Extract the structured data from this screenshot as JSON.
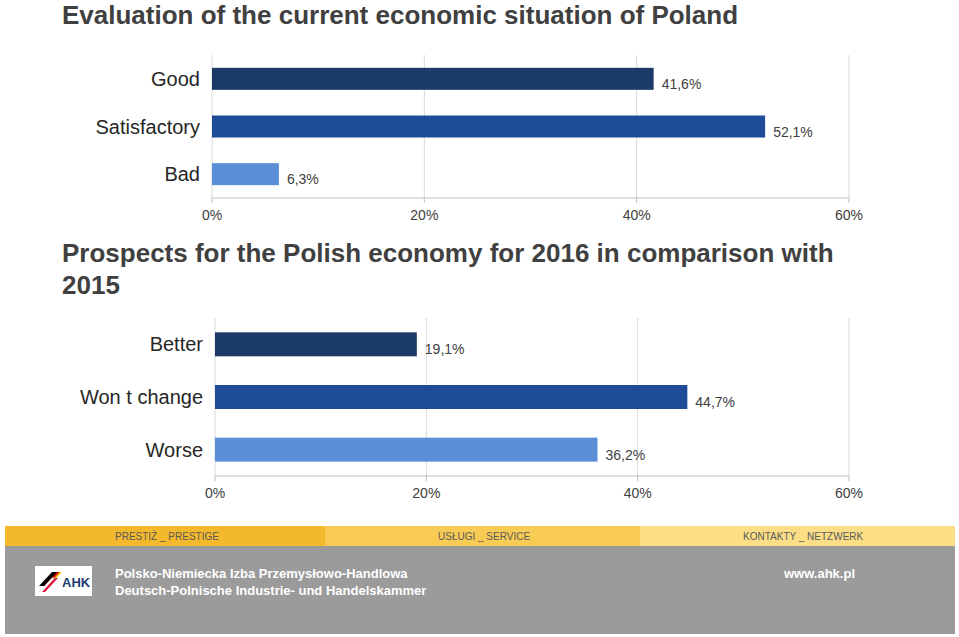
{
  "chart_data": [
    {
      "type": "bar",
      "orientation": "horizontal",
      "title": "Evaluation of the current economic situation of Poland",
      "categories": [
        "Good",
        "Satisfactory",
        "Bad"
      ],
      "values": [
        41.6,
        52.1,
        6.3
      ],
      "value_labels": [
        "41,6%",
        "52,1%",
        "6,3%"
      ],
      "colors": [
        "#1b3a66",
        "#1f4c99",
        "#5b8fd8"
      ],
      "xlim": [
        0,
        60
      ],
      "xticks": [
        {
          "value": 0,
          "label": "0%"
        },
        {
          "value": 20,
          "label": "20%"
        },
        {
          "value": 40,
          "label": "40%"
        },
        {
          "value": 60,
          "label": "60%"
        }
      ],
      "grid": true,
      "data_labels": true
    },
    {
      "type": "bar",
      "orientation": "horizontal",
      "title": "Prospects for the Polish economy for 2016 in comparison with 2015",
      "categories": [
        "Better",
        "Won t change",
        "Worse"
      ],
      "values": [
        19.1,
        44.7,
        36.2
      ],
      "value_labels": [
        "19,1%",
        "44,7%",
        "36,2%"
      ],
      "colors": [
        "#1b3a66",
        "#1f4c99",
        "#5b8fd8"
      ],
      "xlim": [
        0,
        60
      ],
      "xticks": [
        {
          "value": 0,
          "label": "0%"
        },
        {
          "value": 20,
          "label": "20%"
        },
        {
          "value": 40,
          "label": "40%"
        },
        {
          "value": 60,
          "label": "60%"
        }
      ],
      "grid": true,
      "data_labels": true
    }
  ],
  "footer": {
    "tabs": [
      "PRESTIŻ _ PRESTIGE",
      "USŁUGI _ SERVICE",
      "KONTAKTY _ NETZWERK"
    ],
    "logo": "AHK",
    "org_lines": [
      "Polsko-Niemiecka Izba Przemysłowo-Handlowa",
      "Deutsch-Polnische Industrie- und Handelskammer"
    ],
    "url": "www.ahk.pl"
  }
}
